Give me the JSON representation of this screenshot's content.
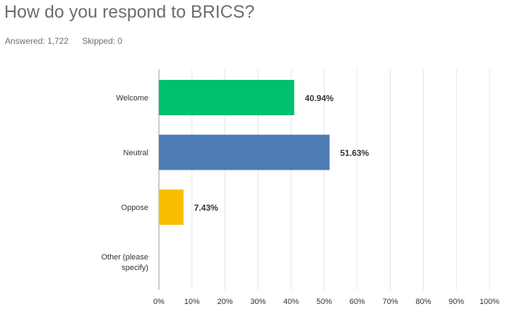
{
  "question": {
    "title": "How do you respond to BRICS?",
    "answered_label": "Answered: 1,722",
    "skipped_label": "Skipped: 0"
  },
  "chart_data": {
    "type": "bar",
    "orientation": "horizontal",
    "categories": [
      [
        "Welcome"
      ],
      [
        "Neutral"
      ],
      [
        "Oppose"
      ],
      [
        "Other (please",
        "specify)"
      ]
    ],
    "values": [
      40.94,
      51.63,
      7.43,
      0
    ],
    "value_labels": [
      "40.94%",
      "51.63%",
      "7.43%",
      ""
    ],
    "colors": [
      "#00bf6f",
      "#507cb6",
      "#f9be00",
      "#6bc8cd"
    ],
    "xlim": [
      0,
      100
    ],
    "xticks": [
      0,
      10,
      20,
      30,
      40,
      50,
      60,
      70,
      80,
      90,
      100
    ],
    "xtick_labels": [
      "0%",
      "10%",
      "20%",
      "30%",
      "40%",
      "50%",
      "60%",
      "70%",
      "80%",
      "90%",
      "100%"
    ],
    "grid": true
  }
}
